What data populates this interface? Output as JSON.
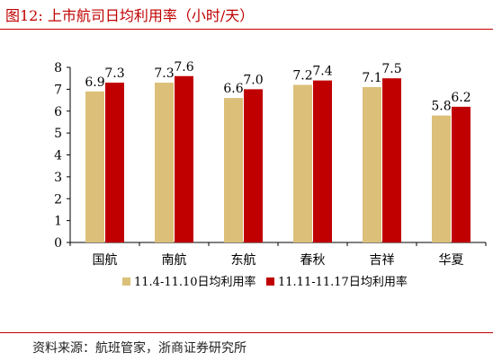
{
  "figure": {
    "title": "图12:  上市航司日均利用率（小时/天）",
    "source": "资料来源：航班管家，浙商证券研究所"
  },
  "colors": {
    "title_red": "#c00000",
    "series1": "#dcc07a",
    "series2": "#c00000",
    "axis": "#000000"
  },
  "chart_data": {
    "type": "bar",
    "categories": [
      "国航",
      "南航",
      "东航",
      "春秋",
      "吉祥",
      "华夏"
    ],
    "series": [
      {
        "name": "11.4-11.10日均利用率",
        "values": [
          6.9,
          7.3,
          6.6,
          7.2,
          7.1,
          5.8
        ]
      },
      {
        "name": "11.11-11.17日均利用率",
        "values": [
          7.3,
          7.6,
          7.0,
          7.4,
          7.5,
          6.2
        ]
      }
    ],
    "ylim": [
      0,
      8
    ],
    "yticks": [
      0,
      1,
      2,
      3,
      4,
      5,
      6,
      7,
      8
    ],
    "grid": false,
    "legend_position": "bottom",
    "data_labels": true
  }
}
